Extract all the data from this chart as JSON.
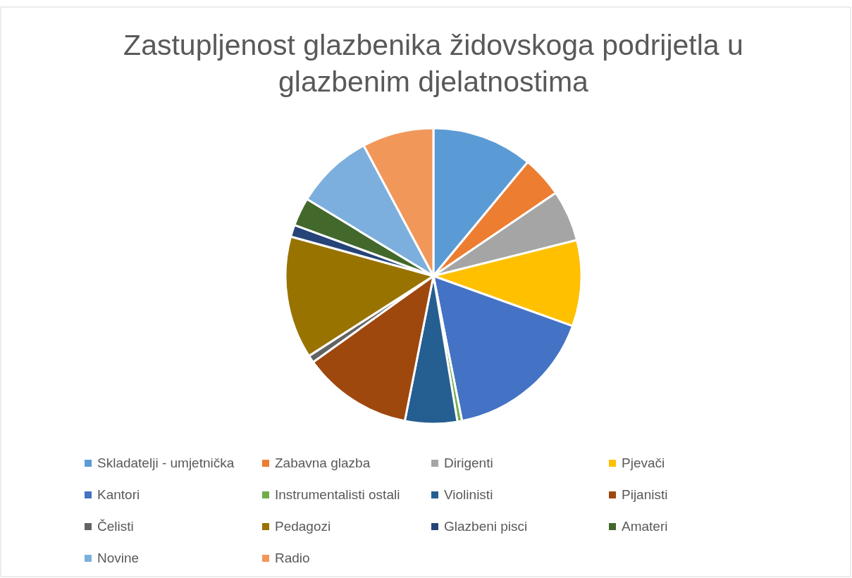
{
  "chart_data": {
    "type": "pie",
    "title": "Zastupljenost glazbenika židovskoga podrijetla u glazbenim djelatnostima",
    "categories": [
      "Skladatelji - umjetnička",
      "Zabavna glazba",
      "Dirigenti",
      "Pjevači",
      "Kantori",
      "Instrumentalisti ostali",
      "Violinisti",
      "Pijanisti",
      "Čelisti",
      "Pedagozi",
      "Glazbeni pisci",
      "Amateri",
      "Novine",
      "Radio"
    ],
    "values": [
      11,
      4.5,
      5.6,
      9.4,
      16.4,
      0.5,
      5.7,
      12,
      0.8,
      13.4,
      1.3,
      3.1,
      8.5,
      7.8
    ],
    "colors": [
      "#5b9bd5",
      "#ed7d31",
      "#a5a5a5",
      "#ffc000",
      "#4472c4",
      "#70ad47",
      "#255e91",
      "#9e480e",
      "#636363",
      "#997300",
      "#264478",
      "#43682b",
      "#7cafdd",
      "#f1975a"
    ],
    "legend": "bottom"
  }
}
